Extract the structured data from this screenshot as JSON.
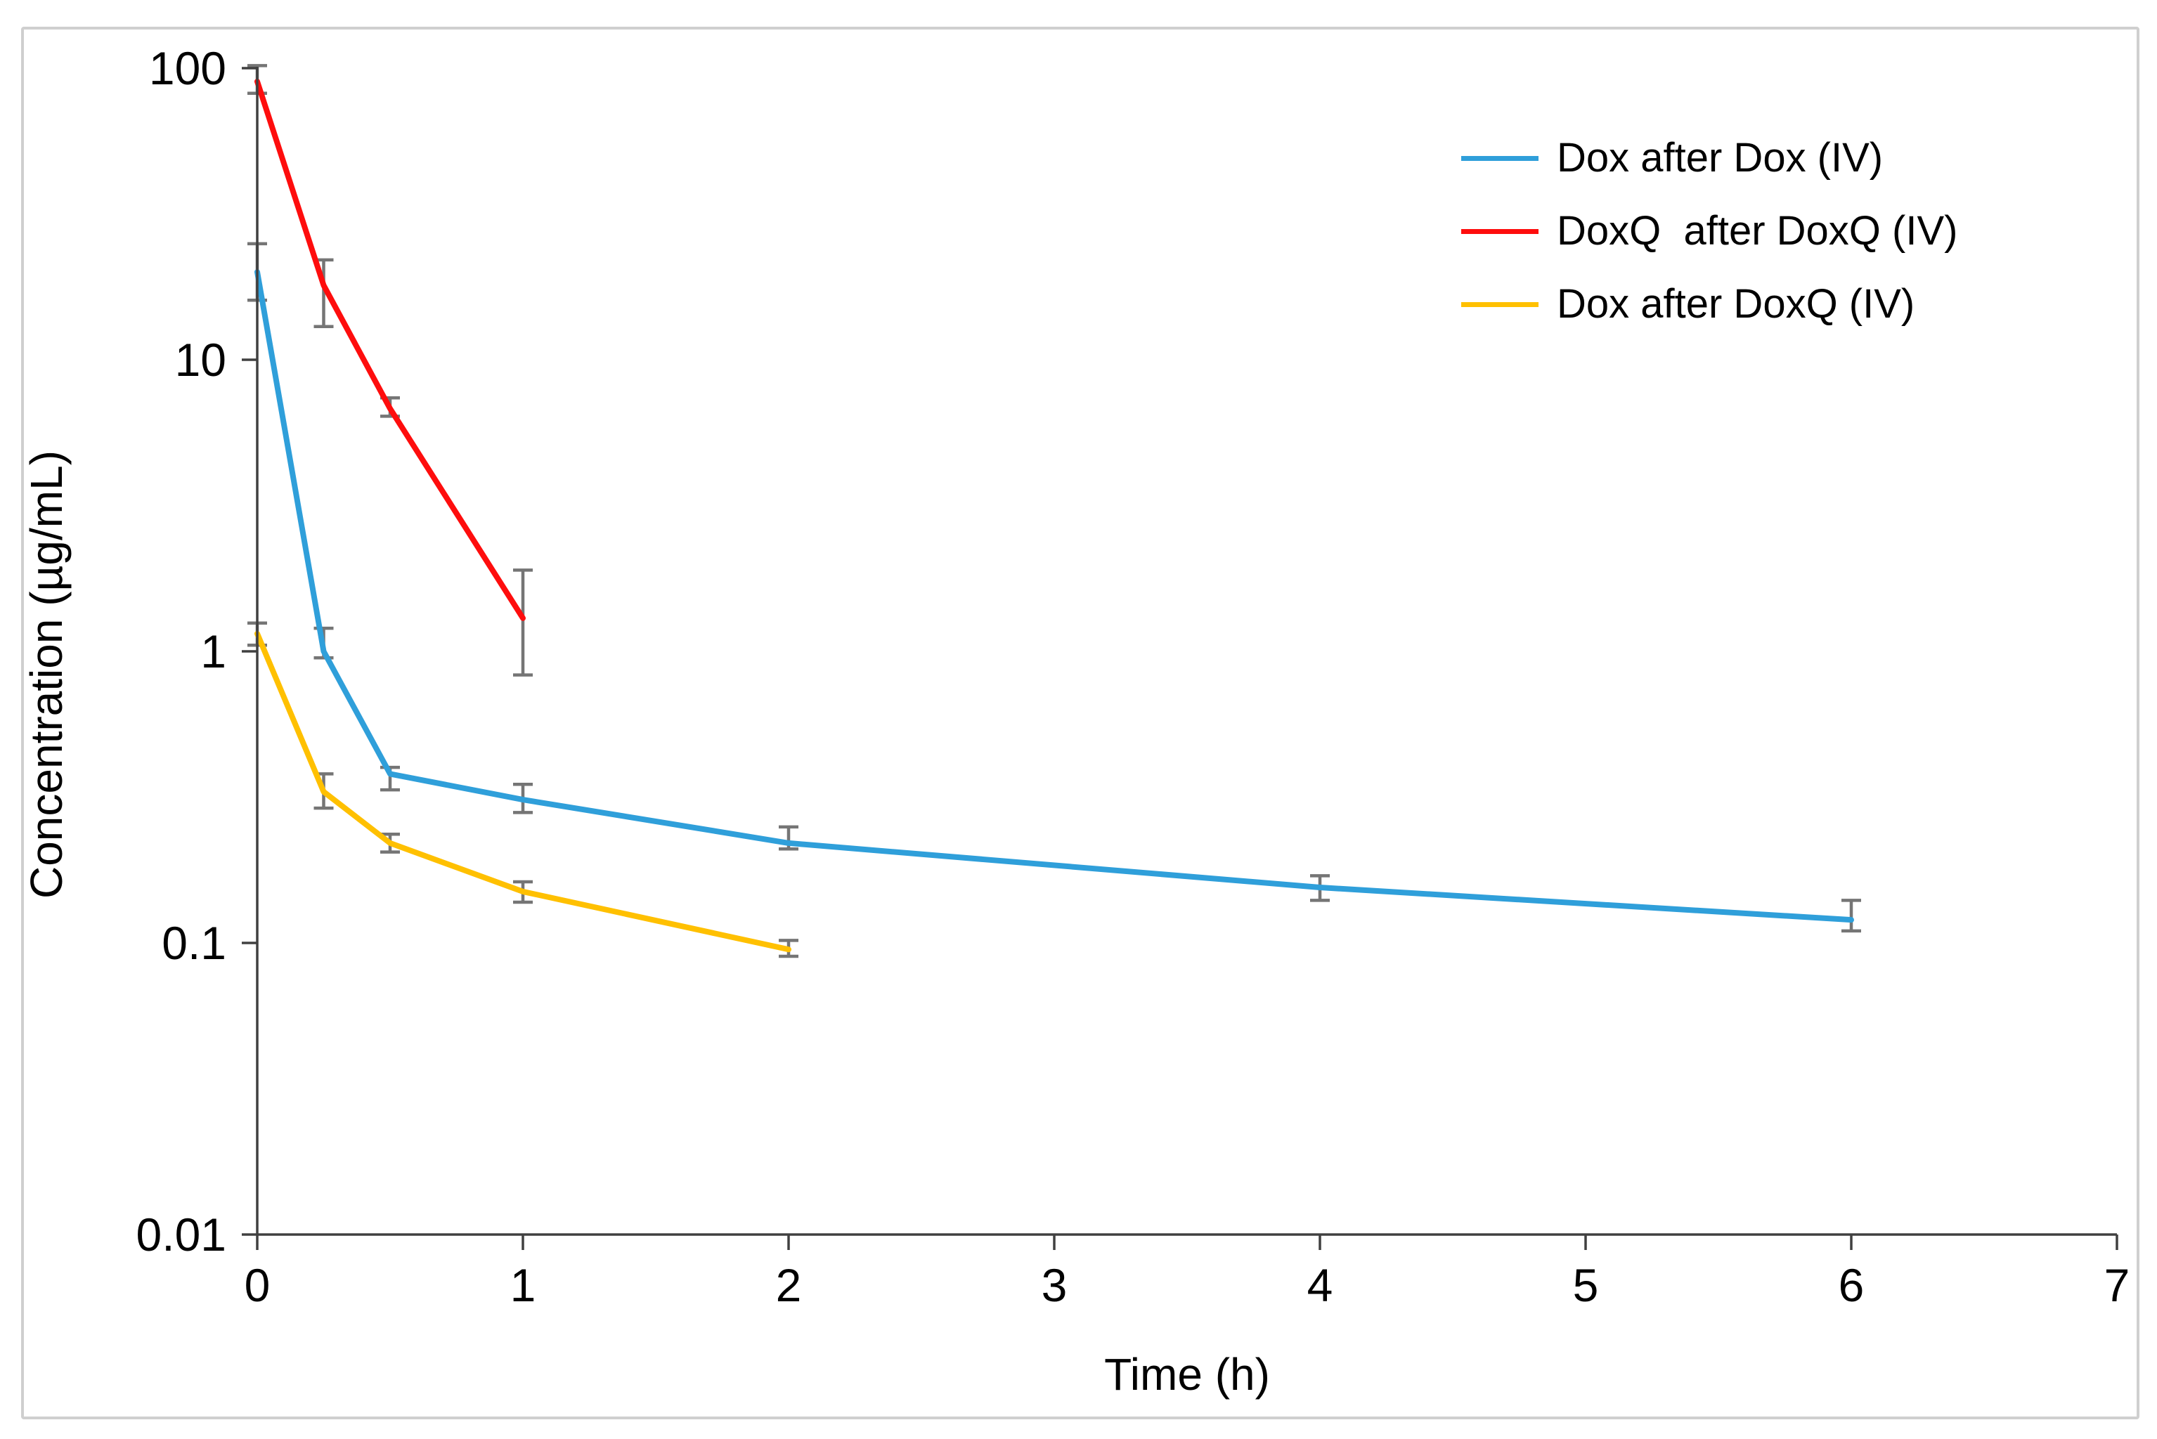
{
  "figure": {
    "background": "#ffffff",
    "border_color": "#cfcfcf"
  },
  "chart_data": {
    "type": "line",
    "title": "",
    "xlabel": "Time (h)",
    "ylabel": "Concentration (µg/mL)",
    "x_axis": {
      "scale": "linear",
      "xlim": [
        0,
        7
      ],
      "ticks": [
        0,
        1,
        2,
        3,
        4,
        5,
        6,
        7
      ]
    },
    "y_axis": {
      "scale": "log",
      "ylim": [
        0.01,
        100
      ],
      "ticks": [
        100,
        10,
        1,
        0.1,
        0.01
      ],
      "tick_labels": [
        "100",
        "10",
        "1",
        "0.1",
        "0.01"
      ]
    },
    "grid": false,
    "legend_position": "inside-top-right",
    "axis_color": "#404040",
    "error_bar_color": "#757575",
    "text_color": "#000000",
    "series": [
      {
        "name": "Dox after Dox (IV)",
        "color": "#2f9fda",
        "x": [
          0,
          0.25,
          0.5,
          1,
          2,
          4,
          6
        ],
        "y": [
          20,
          1.0,
          0.38,
          0.31,
          0.22,
          0.155,
          0.12
        ],
        "err_low": [
          16,
          0.95,
          0.335,
          0.28,
          0.21,
          0.14,
          0.11
        ],
        "err_high": [
          25,
          1.2,
          0.4,
          0.35,
          0.25,
          0.17,
          0.14
        ]
      },
      {
        "name": "DoxQ  after DoxQ (IV)",
        "color": "#fe0d0d",
        "x": [
          0,
          0.25,
          0.5,
          1
        ],
        "y": [
          90,
          18,
          6.8,
          1.3
        ],
        "err_low": [
          82,
          13,
          6.4,
          0.83
        ],
        "err_high": [
          102,
          22,
          7.4,
          1.9
        ]
      },
      {
        "name": "Dox after DoxQ (IV)",
        "color": "#ffc000",
        "x": [
          0,
          0.25,
          0.5,
          1,
          2
        ],
        "y": [
          1.15,
          0.33,
          0.22,
          0.15,
          0.095
        ],
        "err_low": [
          1.05,
          0.29,
          0.205,
          0.138,
          0.09
        ],
        "err_high": [
          1.25,
          0.38,
          0.236,
          0.162,
          0.102
        ]
      }
    ]
  }
}
